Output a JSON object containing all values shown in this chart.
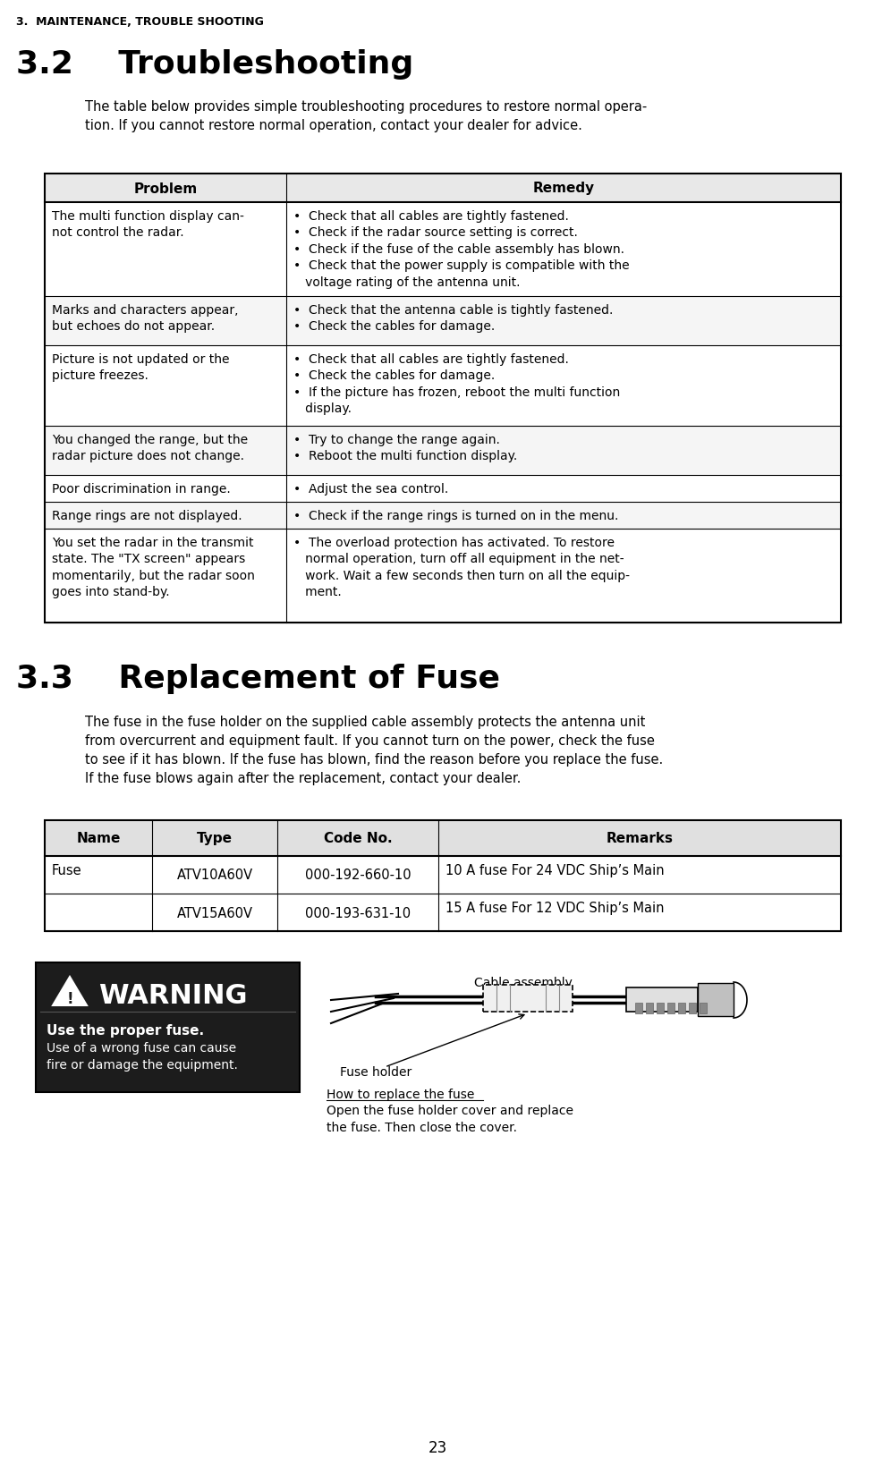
{
  "page_header": "3.  MAINTENANCE, TROUBLE SHOOTING",
  "section_32_title": "3.2    Troubleshooting",
  "section_32_intro": "The table below provides simple troubleshooting procedures to restore normal opera-\ntion. If you cannot restore normal operation, contact your dealer for advice.",
  "table1_headers": [
    "Problem",
    "Remedy"
  ],
  "table1_rows": [
    {
      "problem": "The multi function display can-\nnot control the radar.",
      "remedy": "•  Check that all cables are tightly fastened.\n•  Check if the radar source setting is correct.\n•  Check if the fuse of the cable assembly has blown.\n•  Check that the power supply is compatible with the\n   voltage rating of the antenna unit."
    },
    {
      "problem": "Marks and characters appear,\nbut echoes do not appear.",
      "remedy": "•  Check that the antenna cable is tightly fastened.\n•  Check the cables for damage."
    },
    {
      "problem": "Picture is not updated or the\npicture freezes.",
      "remedy": "•  Check that all cables are tightly fastened.\n•  Check the cables for damage.\n•  If the picture has frozen, reboot the multi function\n   display."
    },
    {
      "problem": "You changed the range, but the\nradar picture does not change.",
      "remedy": "•  Try to change the range again.\n•  Reboot the multi function display."
    },
    {
      "problem": "Poor discrimination in range.",
      "remedy": "•  Adjust the sea control."
    },
    {
      "problem": "Range rings are not displayed.",
      "remedy": "•  Check if the range rings is turned on in the menu."
    },
    {
      "problem": "You set the radar in the transmit\nstate. The \"TX screen\" appears\nmomentarily, but the radar soon\ngoes into stand-by.",
      "remedy": "•  The overload protection has activated. To restore\n   normal operation, turn off all equipment in the net-\n   work. Wait a few seconds then turn on all the equip-\n   ment."
    }
  ],
  "section_33_title": "3.3    Replacement of Fuse",
  "section_33_intro": "The fuse in the fuse holder on the supplied cable assembly protects the antenna unit\nfrom overcurrent and equipment fault. If you cannot turn on the power, check the fuse\nto see if it has blown. If the fuse has blown, find the reason before you replace the fuse.\nIf the fuse blows again after the replacement, contact your dealer.",
  "table2_headers": [
    "Name",
    "Type",
    "Code No.",
    "Remarks"
  ],
  "table2_rows": [
    [
      "Fuse",
      "ATV10A60V",
      "000-192-660-10",
      "10 A fuse For 24 VDC Ship’s Main"
    ],
    [
      "",
      "ATV15A60V",
      "000-193-631-10",
      "15 A fuse For 12 VDC Ship’s Main"
    ]
  ],
  "warning_title": "WARNING",
  "warning_bold": "Use the proper fuse.",
  "warning_text": "Use of a wrong fuse can cause\nfire or damage the equipment.",
  "cable_label": "Cable assembly",
  "fuse_holder_label": "Fuse holder",
  "how_to_label": "How to replace the fuse",
  "how_to_text": "Open the fuse holder cover and replace\nthe fuse. Then close the cover.",
  "page_number": "23",
  "bg_color": "#ffffff",
  "text_color": "#000000",
  "header_color": "#000000",
  "warning_bg": "#1a1a1a",
  "warning_text_color": "#ffffff"
}
